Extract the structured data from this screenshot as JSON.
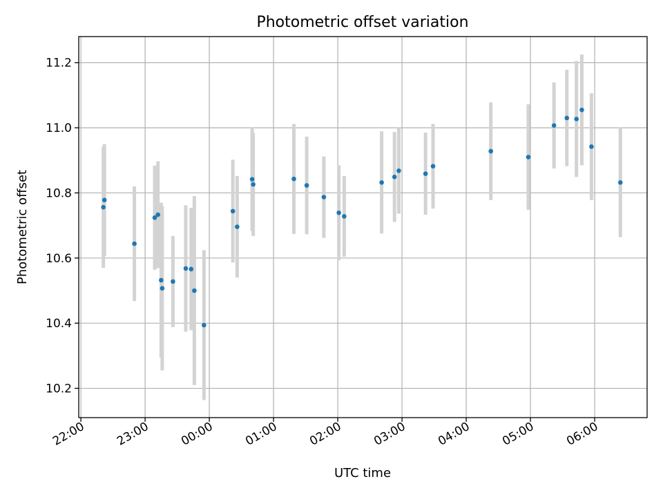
{
  "chart_data": {
    "type": "scatter",
    "title": "Photometric offset variation",
    "xlabel": "UTC time",
    "ylabel": "Photometric offset",
    "x_ticks": [
      "22:00",
      "23:00",
      "00:00",
      "01:00",
      "02:00",
      "03:00",
      "04:00",
      "05:00",
      "06:00"
    ],
    "y_ticks": [
      10.2,
      10.4,
      10.6,
      10.8,
      11.0,
      11.2
    ],
    "xlim": [
      "21:58",
      "06:49"
    ],
    "ylim": [
      10.11,
      11.28
    ],
    "grid": true,
    "colors": {
      "point": "#1f77b4",
      "errorbar": "#d3d3d3"
    },
    "points": [
      {
        "x": "22:21",
        "y": 10.756,
        "yerr": 0.186
      },
      {
        "x": "22:22",
        "y": 10.778,
        "yerr": 0.172
      },
      {
        "x": "22:50",
        "y": 10.644,
        "yerr": 0.176
      },
      {
        "x": "23:09",
        "y": 10.724,
        "yerr": 0.16
      },
      {
        "x": "23:12",
        "y": 10.733,
        "yerr": 0.164
      },
      {
        "x": "23:15",
        "y": 10.532,
        "yerr": 0.238
      },
      {
        "x": "23:16",
        "y": 10.507,
        "yerr": 0.252
      },
      {
        "x": "23:26",
        "y": 10.528,
        "yerr": 0.14
      },
      {
        "x": "23:38",
        "y": 10.568,
        "yerr": 0.194
      },
      {
        "x": "23:43",
        "y": 10.566,
        "yerr": 0.188
      },
      {
        "x": "23:46",
        "y": 10.5,
        "yerr": 0.29
      },
      {
        "x": "23:55",
        "y": 10.394,
        "yerr": 0.23
      },
      {
        "x": "00:22",
        "y": 10.744,
        "yerr": 0.158
      },
      {
        "x": "00:26",
        "y": 10.696,
        "yerr": 0.156
      },
      {
        "x": "00:40",
        "y": 10.842,
        "yerr": 0.158
      },
      {
        "x": "00:41",
        "y": 10.826,
        "yerr": 0.158
      },
      {
        "x": "01:19",
        "y": 10.843,
        "yerr": 0.169
      },
      {
        "x": "01:31",
        "y": 10.823,
        "yerr": 0.15
      },
      {
        "x": "01:47",
        "y": 10.787,
        "yerr": 0.125
      },
      {
        "x": "02:01",
        "y": 10.739,
        "yerr": 0.146
      },
      {
        "x": "02:06",
        "y": 10.728,
        "yerr": 0.124
      },
      {
        "x": "02:41",
        "y": 10.832,
        "yerr": 0.157
      },
      {
        "x": "02:53",
        "y": 10.849,
        "yerr": 0.138
      },
      {
        "x": "02:57",
        "y": 10.868,
        "yerr": 0.132
      },
      {
        "x": "03:22",
        "y": 10.859,
        "yerr": 0.126
      },
      {
        "x": "03:29",
        "y": 10.882,
        "yerr": 0.13
      },
      {
        "x": "04:23",
        "y": 10.928,
        "yerr": 0.15
      },
      {
        "x": "04:58",
        "y": 10.91,
        "yerr": 0.162
      },
      {
        "x": "05:22",
        "y": 11.007,
        "yerr": 0.132
      },
      {
        "x": "05:34",
        "y": 11.03,
        "yerr": 0.148
      },
      {
        "x": "05:43",
        "y": 11.027,
        "yerr": 0.178
      },
      {
        "x": "05:48",
        "y": 11.055,
        "yerr": 0.17
      },
      {
        "x": "05:57",
        "y": 10.942,
        "yerr": 0.164
      },
      {
        "x": "06:24",
        "y": 10.832,
        "yerr": 0.168
      }
    ]
  }
}
